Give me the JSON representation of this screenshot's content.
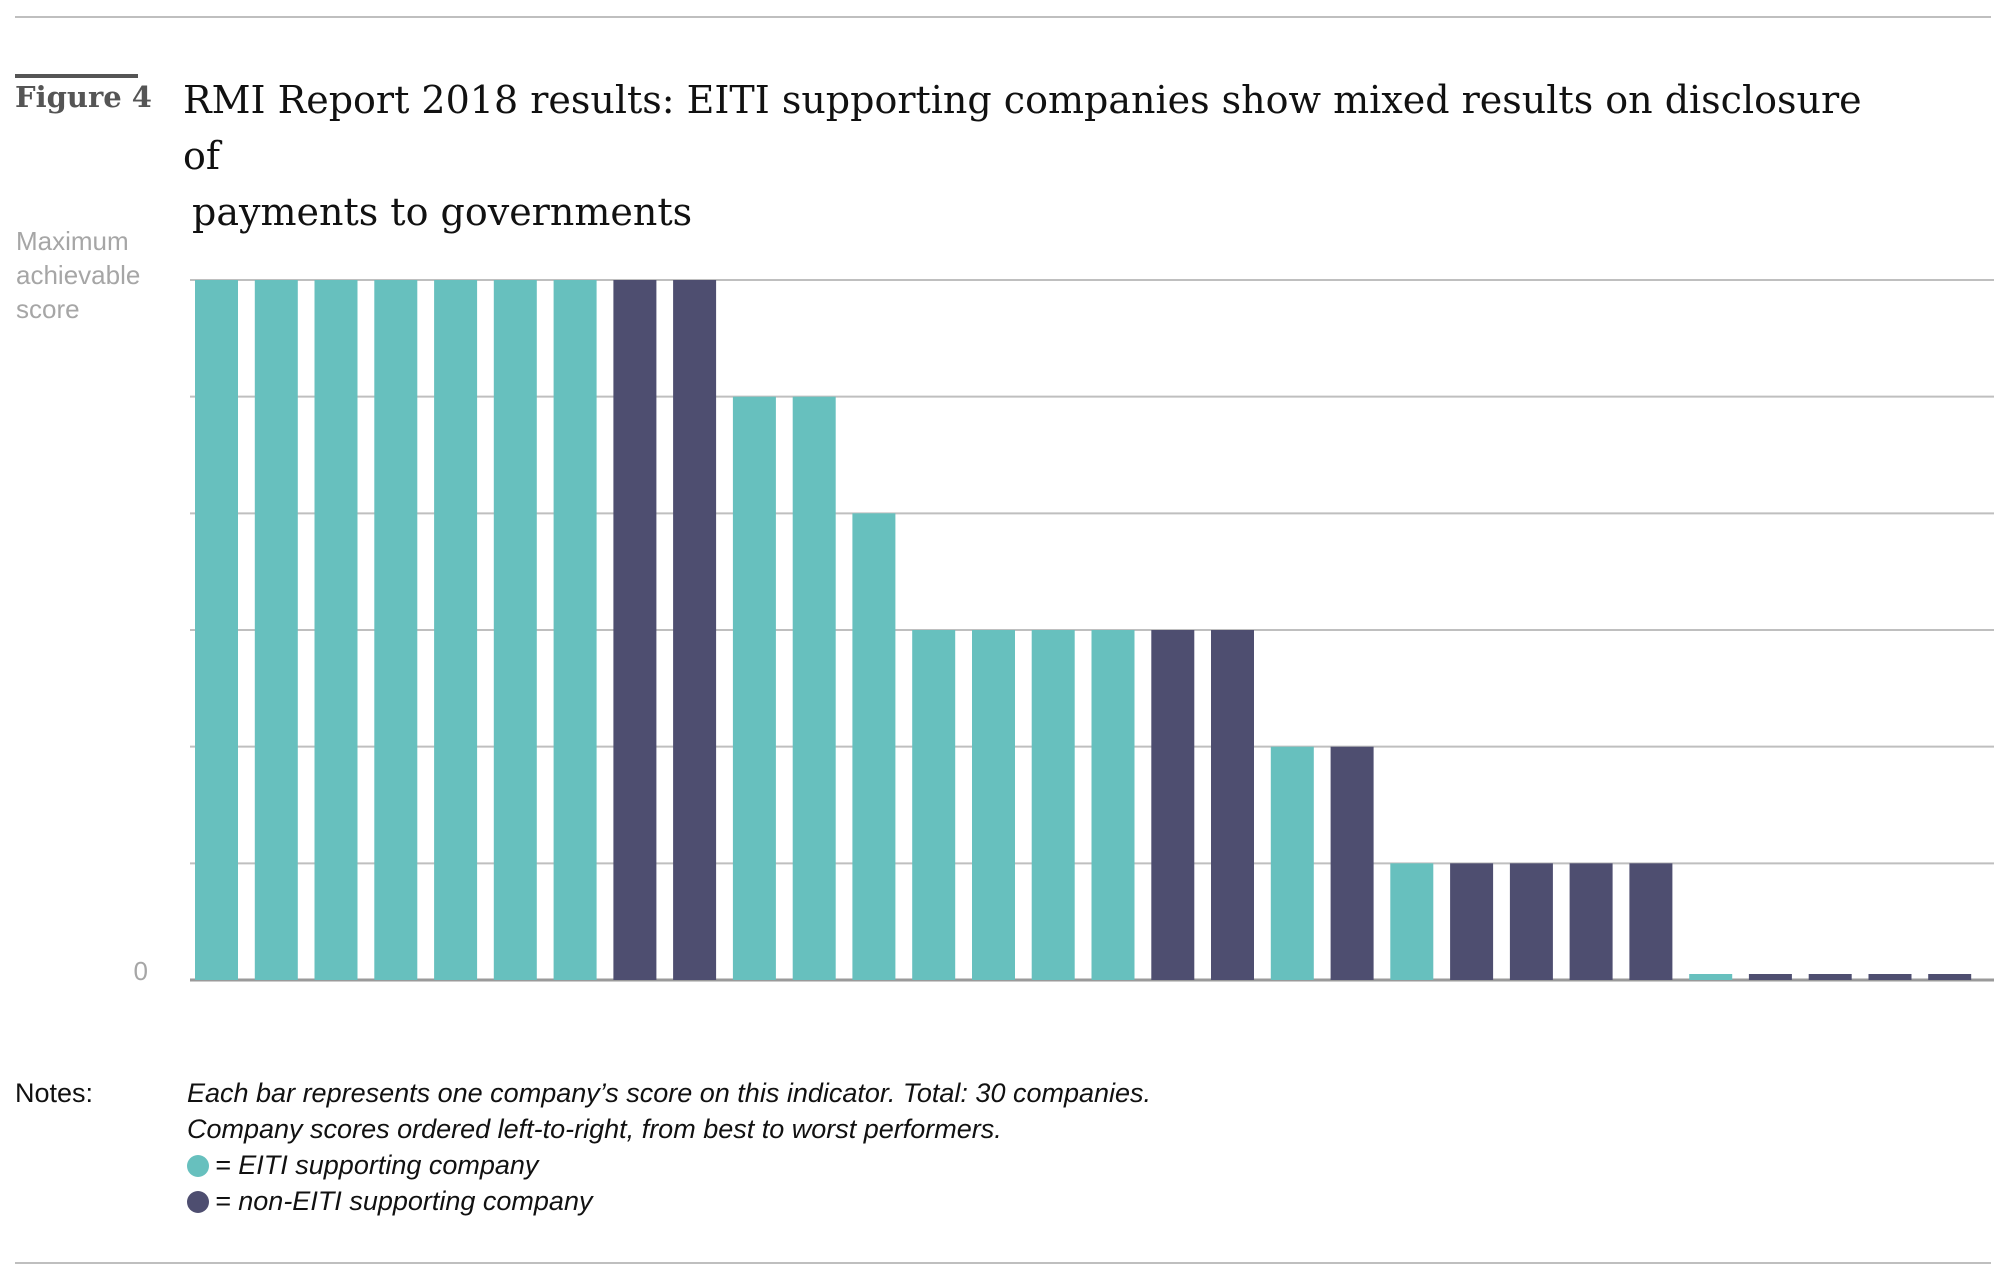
{
  "figure": {
    "label": "Figure 4",
    "title_line1": "RMI Report 2018 results: EITI supporting companies show mixed results on disclosure of",
    "title_line2": "payments to governments"
  },
  "colors": {
    "eiti": "#67c0be",
    "non_eiti": "#4e4e70",
    "grid": "#bfbfbf",
    "axis_text": "#a6a6a6"
  },
  "chart_data": {
    "type": "bar",
    "y_top_label": "Maximum achievable score",
    "y_bottom_label": "0",
    "ylim": [
      0,
      6
    ],
    "grid": true,
    "gridlines_at": [
      1,
      2,
      3,
      4,
      5,
      6
    ],
    "series": [
      {
        "name": "EITI supporting company",
        "color_key": "eiti"
      },
      {
        "name": "non-EITI supporting company",
        "color_key": "non_eiti"
      }
    ],
    "values": [
      6,
      6,
      6,
      6,
      6,
      6,
      6,
      6,
      6,
      5,
      5,
      4,
      3,
      3,
      3,
      3,
      3,
      3,
      2,
      2,
      1,
      1,
      1,
      1,
      1,
      0,
      0,
      0,
      0,
      0
    ],
    "groups": [
      "eiti",
      "eiti",
      "eiti",
      "eiti",
      "eiti",
      "eiti",
      "eiti",
      "non_eiti",
      "non_eiti",
      "eiti",
      "eiti",
      "eiti",
      "eiti",
      "eiti",
      "eiti",
      "eiti",
      "non_eiti",
      "non_eiti",
      "eiti",
      "non_eiti",
      "eiti",
      "non_eiti",
      "non_eiti",
      "non_eiti",
      "non_eiti",
      "eiti",
      "non_eiti",
      "non_eiti",
      "non_eiti",
      "non_eiti"
    ]
  },
  "notes": {
    "label": "Notes:",
    "line1": "Each bar represents one company’s score on this indicator. Total: 30 companies.",
    "line2": "Company scores ordered left-to-right, from best to worst performers.",
    "legend_eiti": "= EITI supporting company",
    "legend_non_eiti": "= non-EITI supporting company"
  }
}
